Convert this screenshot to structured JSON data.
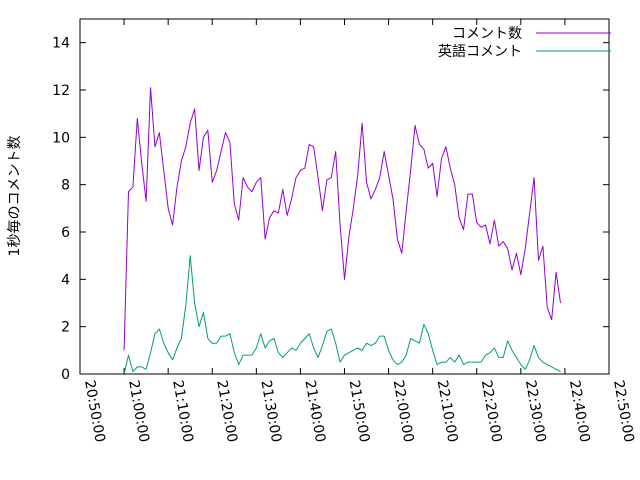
{
  "chart_data": {
    "type": "line",
    "title": "",
    "xlabel": "",
    "ylabel": "1秒毎のコメント数",
    "ylim": [
      0,
      15
    ],
    "xlim": [
      "20:50:00",
      "22:50:00"
    ],
    "yticks": [
      0,
      2,
      4,
      6,
      8,
      10,
      12,
      14
    ],
    "xticks": [
      "20:50:00",
      "21:00:00",
      "21:10:00",
      "21:20:00",
      "21:30:00",
      "21:40:00",
      "21:50:00",
      "22:00:00",
      "22:10:00",
      "22:20:00",
      "22:30:00",
      "22:40:00",
      "22:50:00"
    ],
    "grid": false,
    "legend_position": "top-right",
    "series": [
      {
        "name": "コメント数",
        "color": "#9400d3",
        "points": [
          [
            "21:00:00",
            1.0
          ],
          [
            "21:01:00",
            7.7
          ],
          [
            "21:02:00",
            7.9
          ],
          [
            "21:03:00",
            10.8
          ],
          [
            "21:04:00",
            8.9
          ],
          [
            "21:05:00",
            7.3
          ],
          [
            "21:06:00",
            12.1
          ],
          [
            "21:07:00",
            9.6
          ],
          [
            "21:08:00",
            10.2
          ],
          [
            "21:09:00",
            8.6
          ],
          [
            "21:10:00",
            7.0
          ],
          [
            "21:11:00",
            6.3
          ],
          [
            "21:12:00",
            7.9
          ],
          [
            "21:13:00",
            9.0
          ],
          [
            "21:14:00",
            9.6
          ],
          [
            "21:15:00",
            10.6
          ],
          [
            "21:16:00",
            11.2
          ],
          [
            "21:17:00",
            8.6
          ],
          [
            "21:18:00",
            10.0
          ],
          [
            "21:19:00",
            10.3
          ],
          [
            "21:20:00",
            8.1
          ],
          [
            "21:21:00",
            8.6
          ],
          [
            "21:22:00",
            9.4
          ],
          [
            "21:23:00",
            10.2
          ],
          [
            "21:24:00",
            9.8
          ],
          [
            "21:25:00",
            7.2
          ],
          [
            "21:26:00",
            6.5
          ],
          [
            "21:27:00",
            8.3
          ],
          [
            "21:28:00",
            7.9
          ],
          [
            "21:29:00",
            7.7
          ],
          [
            "21:30:00",
            8.1
          ],
          [
            "21:31:00",
            8.3
          ],
          [
            "21:32:00",
            5.7
          ],
          [
            "21:33:00",
            6.6
          ],
          [
            "21:34:00",
            6.9
          ],
          [
            "21:35:00",
            6.8
          ],
          [
            "21:36:00",
            7.8
          ],
          [
            "21:37:00",
            6.7
          ],
          [
            "21:38:00",
            7.4
          ],
          [
            "21:39:00",
            8.3
          ],
          [
            "21:40:00",
            8.6
          ],
          [
            "21:41:00",
            8.7
          ],
          [
            "21:42:00",
            9.7
          ],
          [
            "21:43:00",
            9.6
          ],
          [
            "21:44:00",
            8.3
          ],
          [
            "21:45:00",
            6.9
          ],
          [
            "21:46:00",
            8.2
          ],
          [
            "21:47:00",
            8.3
          ],
          [
            "21:48:00",
            9.4
          ],
          [
            "21:49:00",
            6.3
          ],
          [
            "21:50:00",
            4.0
          ],
          [
            "21:51:00",
            5.8
          ],
          [
            "21:52:00",
            7.0
          ],
          [
            "21:53:00",
            8.4
          ],
          [
            "21:54:00",
            10.6
          ],
          [
            "21:55:00",
            8.1
          ],
          [
            "21:56:00",
            7.4
          ],
          [
            "21:57:00",
            7.8
          ],
          [
            "21:58:00",
            8.3
          ],
          [
            "21:59:00",
            9.4
          ],
          [
            "22:00:00",
            8.4
          ],
          [
            "22:01:00",
            7.4
          ],
          [
            "22:02:00",
            5.7
          ],
          [
            "22:03:00",
            5.1
          ],
          [
            "22:04:00",
            6.9
          ],
          [
            "22:05:00",
            8.6
          ],
          [
            "22:06:00",
            10.5
          ],
          [
            "22:07:00",
            9.7
          ],
          [
            "22:08:00",
            9.5
          ],
          [
            "22:09:00",
            8.7
          ],
          [
            "22:10:00",
            8.9
          ],
          [
            "22:11:00",
            7.5
          ],
          [
            "22:12:00",
            9.1
          ],
          [
            "22:13:00",
            9.6
          ],
          [
            "22:14:00",
            8.7
          ],
          [
            "22:15:00",
            8.0
          ],
          [
            "22:16:00",
            6.6
          ],
          [
            "22:17:00",
            6.1
          ],
          [
            "22:18:00",
            7.6
          ],
          [
            "22:19:00",
            7.6
          ],
          [
            "22:20:00",
            6.4
          ],
          [
            "22:21:00",
            6.2
          ],
          [
            "22:22:00",
            6.3
          ],
          [
            "22:23:00",
            5.5
          ],
          [
            "22:24:00",
            6.5
          ],
          [
            "22:25:00",
            5.4
          ],
          [
            "22:26:00",
            5.6
          ],
          [
            "22:27:00",
            5.3
          ],
          [
            "22:28:00",
            4.4
          ],
          [
            "22:29:00",
            5.1
          ],
          [
            "22:30:00",
            4.2
          ],
          [
            "22:31:00",
            5.3
          ],
          [
            "22:32:00",
            6.8
          ],
          [
            "22:33:00",
            8.3
          ],
          [
            "22:34:00",
            4.8
          ],
          [
            "22:35:00",
            5.4
          ],
          [
            "22:36:00",
            2.8
          ],
          [
            "22:37:00",
            2.3
          ],
          [
            "22:38:00",
            4.3
          ],
          [
            "22:39:00",
            3.0
          ]
        ]
      },
      {
        "name": "英語コメント",
        "color": "#009e73",
        "points": [
          [
            "21:00:00",
            0.0
          ],
          [
            "21:01:00",
            0.8
          ],
          [
            "21:02:00",
            0.1
          ],
          [
            "21:03:00",
            0.3
          ],
          [
            "21:04:00",
            0.3
          ],
          [
            "21:05:00",
            0.2
          ],
          [
            "21:06:00",
            0.9
          ],
          [
            "21:07:00",
            1.7
          ],
          [
            "21:08:00",
            1.9
          ],
          [
            "21:09:00",
            1.3
          ],
          [
            "21:10:00",
            0.9
          ],
          [
            "21:11:00",
            0.6
          ],
          [
            "21:12:00",
            1.1
          ],
          [
            "21:13:00",
            1.5
          ],
          [
            "21:14:00",
            2.9
          ],
          [
            "21:15:00",
            5.0
          ],
          [
            "21:16:00",
            3.0
          ],
          [
            "21:17:00",
            2.0
          ],
          [
            "21:18:00",
            2.6
          ],
          [
            "21:19:00",
            1.5
          ],
          [
            "21:20:00",
            1.3
          ],
          [
            "21:21:00",
            1.3
          ],
          [
            "21:22:00",
            1.6
          ],
          [
            "21:23:00",
            1.6
          ],
          [
            "21:24:00",
            1.7
          ],
          [
            "21:25:00",
            0.9
          ],
          [
            "21:26:00",
            0.4
          ],
          [
            "21:27:00",
            0.8
          ],
          [
            "21:28:00",
            0.8
          ],
          [
            "21:29:00",
            0.8
          ],
          [
            "21:30:00",
            1.1
          ],
          [
            "21:31:00",
            1.7
          ],
          [
            "21:32:00",
            1.1
          ],
          [
            "21:33:00",
            1.4
          ],
          [
            "21:34:00",
            1.5
          ],
          [
            "21:35:00",
            0.9
          ],
          [
            "21:36:00",
            0.7
          ],
          [
            "21:37:00",
            0.9
          ],
          [
            "21:38:00",
            1.1
          ],
          [
            "21:39:00",
            1.0
          ],
          [
            "21:40:00",
            1.3
          ],
          [
            "21:41:00",
            1.5
          ],
          [
            "21:42:00",
            1.7
          ],
          [
            "21:43:00",
            1.1
          ],
          [
            "21:44:00",
            0.7
          ],
          [
            "21:45:00",
            1.2
          ],
          [
            "21:46:00",
            1.8
          ],
          [
            "21:47:00",
            1.9
          ],
          [
            "21:48:00",
            1.3
          ],
          [
            "21:49:00",
            0.5
          ],
          [
            "21:50:00",
            0.8
          ],
          [
            "21:51:00",
            0.9
          ],
          [
            "21:52:00",
            1.0
          ],
          [
            "21:53:00",
            1.1
          ],
          [
            "21:54:00",
            1.0
          ],
          [
            "21:55:00",
            1.3
          ],
          [
            "21:56:00",
            1.2
          ],
          [
            "21:57:00",
            1.3
          ],
          [
            "21:58:00",
            1.6
          ],
          [
            "21:59:00",
            1.6
          ],
          [
            "22:00:00",
            1.0
          ],
          [
            "22:01:00",
            0.6
          ],
          [
            "22:02:00",
            0.4
          ],
          [
            "22:03:00",
            0.5
          ],
          [
            "22:04:00",
            0.8
          ],
          [
            "22:05:00",
            1.5
          ],
          [
            "22:06:00",
            1.4
          ],
          [
            "22:07:00",
            1.3
          ],
          [
            "22:08:00",
            2.1
          ],
          [
            "22:09:00",
            1.7
          ],
          [
            "22:10:00",
            1.0
          ],
          [
            "22:11:00",
            0.4
          ],
          [
            "22:12:00",
            0.5
          ],
          [
            "22:13:00",
            0.5
          ],
          [
            "22:14:00",
            0.7
          ],
          [
            "22:15:00",
            0.5
          ],
          [
            "22:16:00",
            0.8
          ],
          [
            "22:17:00",
            0.4
          ],
          [
            "22:18:00",
            0.5
          ],
          [
            "22:19:00",
            0.5
          ],
          [
            "22:20:00",
            0.5
          ],
          [
            "22:21:00",
            0.5
          ],
          [
            "22:22:00",
            0.8
          ],
          [
            "22:23:00",
            0.9
          ],
          [
            "22:24:00",
            1.1
          ],
          [
            "22:25:00",
            0.7
          ],
          [
            "22:26:00",
            0.7
          ],
          [
            "22:27:00",
            1.4
          ],
          [
            "22:28:00",
            1.0
          ],
          [
            "22:29:00",
            0.7
          ],
          [
            "22:30:00",
            0.4
          ],
          [
            "22:31:00",
            0.2
          ],
          [
            "22:32:00",
            0.6
          ],
          [
            "22:33:00",
            1.2
          ],
          [
            "22:34:00",
            0.7
          ],
          [
            "22:35:00",
            0.5
          ],
          [
            "22:36:00",
            0.4
          ],
          [
            "22:37:00",
            0.3
          ],
          [
            "22:38:00",
            0.2
          ],
          [
            "22:39:00",
            0.1
          ]
        ]
      }
    ]
  }
}
